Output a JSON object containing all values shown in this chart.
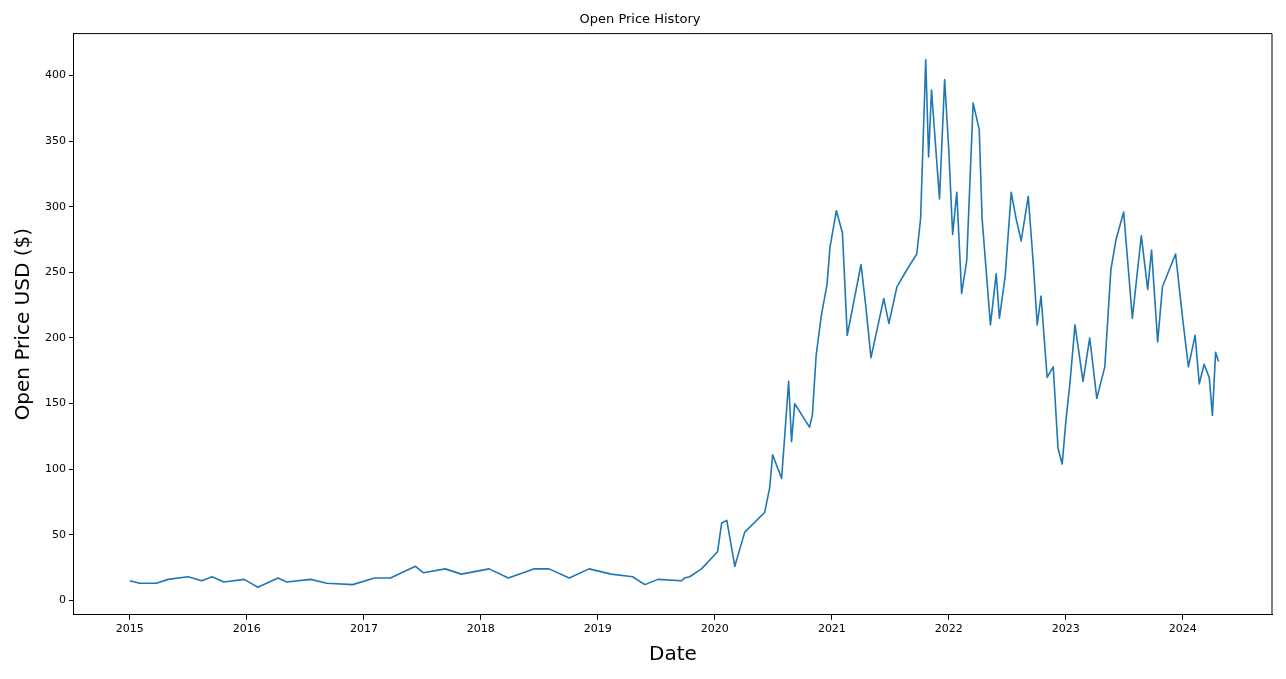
{
  "chart_data": {
    "type": "line",
    "title": "Open Price History",
    "xlabel": "Date",
    "ylabel": "Open Price USD ($)",
    "x": [
      "2015-01-01",
      "2015-02-01",
      "2015-03-25",
      "2015-05-01",
      "2015-07-02",
      "2015-08-14",
      "2015-09-15",
      "2015-10-22",
      "2015-12-24",
      "2016-02-05",
      "2016-04-08",
      "2016-05-05",
      "2016-07-19",
      "2016-09-07",
      "2016-11-27",
      "2017-02-03",
      "2017-03-25",
      "2017-06-11",
      "2017-07-06",
      "2017-09-12",
      "2017-11-01",
      "2018-01-27",
      "2018-03-28",
      "2018-06-15",
      "2018-08-02",
      "2018-10-04",
      "2018-12-05",
      "2019-02-12",
      "2019-04-20",
      "2019-05-28",
      "2019-07-08",
      "2019-09-20",
      "2019-09-29",
      "2019-10-15",
      "2019-11-21",
      "2020-01-10",
      "2020-01-23",
      "2020-02-08",
      "2020-03-04",
      "2020-04-04",
      "2020-06-05",
      "2020-06-21",
      "2020-06-30",
      "2020-07-28",
      "2020-08-07",
      "2020-08-19",
      "2020-08-28",
      "2020-09-07",
      "2020-10-23",
      "2020-11-01",
      "2020-11-13",
      "2020-11-29",
      "2020-12-17",
      "2020-12-26",
      "2021-01-15",
      "2021-02-03",
      "2021-02-18",
      "2021-04-02",
      "2021-04-17",
      "2021-05-03",
      "2021-06-12",
      "2021-06-28",
      "2021-07-23",
      "2021-08-23",
      "2021-09-23",
      "2021-10-05",
      "2021-10-21",
      "2021-10-30",
      "2021-11-08",
      "2021-12-03",
      "2021-12-19",
      "2022-01-01",
      "2022-01-13",
      "2022-01-26",
      "2022-02-10",
      "2022-02-26",
      "2022-03-18",
      "2022-04-06",
      "2022-04-15",
      "2022-05-11",
      "2022-05-29",
      "2022-06-08",
      "2022-06-26",
      "2022-07-15",
      "2022-07-30",
      "2022-08-15",
      "2022-09-06",
      "2022-09-22",
      "2022-10-04",
      "2022-10-16",
      "2022-11-04",
      "2022-11-23",
      "2022-12-08",
      "2022-12-21",
      "2023-01-02",
      "2023-01-14",
      "2023-01-30",
      "2023-02-24",
      "2023-03-17",
      "2023-04-08",
      "2023-05-03",
      "2023-05-22",
      "2023-06-07",
      "2023-07-01",
      "2023-07-28",
      "2023-08-25",
      "2023-09-14",
      "2023-09-26",
      "2023-10-15",
      "2023-10-30",
      "2023-12-10",
      "2024-01-01",
      "2024-01-19",
      "2024-02-09",
      "2024-02-22",
      "2024-03-08",
      "2024-03-24",
      "2024-04-03",
      "2024-04-13",
      "2024-04-22"
    ],
    "series": [
      {
        "color": "#1f77b4",
        "values": [
          15,
          13,
          13,
          16,
          18,
          15,
          18,
          14,
          16,
          10,
          17,
          14,
          16,
          13,
          12,
          17,
          17,
          26,
          21,
          24,
          20,
          24,
          17,
          24,
          24,
          17,
          24,
          20,
          18,
          12,
          16,
          15,
          17,
          18,
          24,
          37,
          59,
          61,
          26,
          52,
          67,
          86,
          111,
          93,
          126,
          167,
          121,
          150,
          132,
          141,
          187,
          217,
          241,
          269,
          297,
          280,
          202,
          256,
          224,
          185,
          230,
          211,
          239,
          252,
          264,
          291,
          412,
          338,
          389,
          306,
          397,
          343,
          279,
          311,
          234,
          259,
          379,
          359,
          291,
          210,
          249,
          215,
          247,
          311,
          291,
          274,
          308,
          256,
          210,
          232,
          170,
          178,
          116,
          104,
          138,
          165,
          210,
          167,
          200,
          154,
          178,
          252,
          275,
          296,
          215,
          278,
          237,
          267,
          197,
          239,
          264,
          215,
          178,
          202,
          165,
          180,
          170,
          141,
          189,
          182
        ]
      }
    ],
    "xlim": [
      "2014-07-11",
      "2024-10-06"
    ],
    "xticks": [
      "2015",
      "2016",
      "2017",
      "2018",
      "2019",
      "2020",
      "2021",
      "2022",
      "2023",
      "2024"
    ],
    "ylim": [
      -11,
      432
    ],
    "yticks": [
      0,
      50,
      100,
      150,
      200,
      250,
      300,
      350,
      400
    ],
    "grid": false,
    "legend": false,
    "marker": "none",
    "line_style": "solid"
  }
}
